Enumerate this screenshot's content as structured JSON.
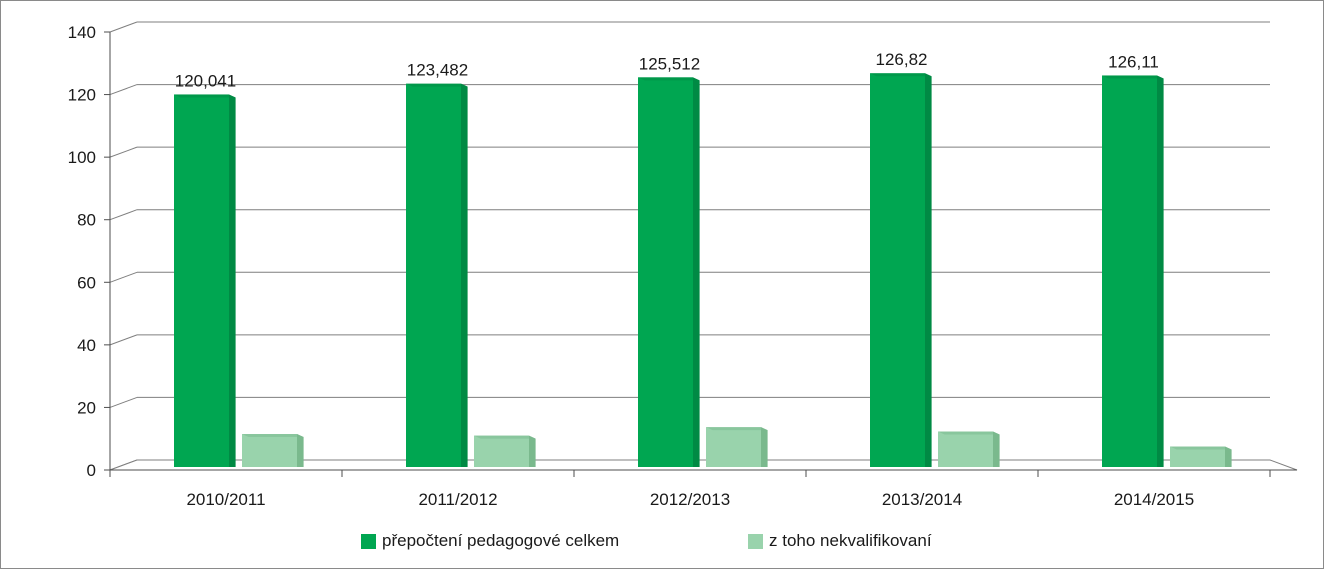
{
  "chart_data": {
    "type": "bar",
    "categories": [
      "2010/2011",
      "2011/2012",
      "2012/2013",
      "2013/2014",
      "2014/2015"
    ],
    "series": [
      {
        "name": "přepočtení pedagogové celkem",
        "values": [
          120.041,
          123.482,
          125.512,
          126.82,
          126.11
        ],
        "labels": [
          "120,041",
          "123,482",
          "125,512",
          "126,82",
          "126,11"
        ],
        "color": "#00a651"
      },
      {
        "name": "z toho nekvalifikovaní",
        "values": [
          11.5,
          11,
          13.7,
          12.3,
          7.5
        ],
        "color": "#99d3ac"
      }
    ],
    "ylim": [
      0,
      140
    ],
    "yticks": [
      "0",
      "20",
      "40",
      "60",
      "80",
      "100",
      "120",
      "140"
    ],
    "grid": true,
    "legend_position": "bottom"
  }
}
